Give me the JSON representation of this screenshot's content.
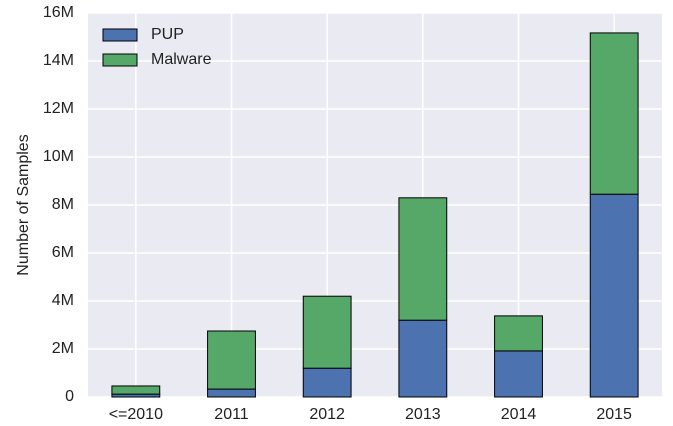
{
  "chart_data": {
    "type": "stacked_bar",
    "ylabel": "Number of Samples",
    "categories": [
      "<=2010",
      "2011",
      "2012",
      "2013",
      "2014",
      "2015"
    ],
    "series": [
      {
        "name": "PUP",
        "color": "#4c72b0",
        "values": [
          120000,
          330000,
          1200000,
          3200000,
          1920000,
          8450000
        ]
      },
      {
        "name": "Malware",
        "color": "#55a868",
        "values": [
          340000,
          2420000,
          3000000,
          5100000,
          1460000,
          6720000
        ]
      }
    ],
    "ylim": [
      0,
      16000000
    ],
    "yticks": [
      0,
      {
        "value": 2000000,
        "label": "2M"
      },
      {
        "value": 4000000,
        "label": "4M"
      },
      {
        "value": 6000000,
        "label": "6M"
      },
      {
        "value": 8000000,
        "label": "8M"
      },
      {
        "value": 10000000,
        "label": "10M"
      },
      {
        "value": 12000000,
        "label": "12M"
      },
      {
        "value": 14000000,
        "label": "14M"
      },
      {
        "value": 16000000,
        "label": "16M"
      }
    ],
    "grid": true,
    "legend": "upper-left"
  }
}
